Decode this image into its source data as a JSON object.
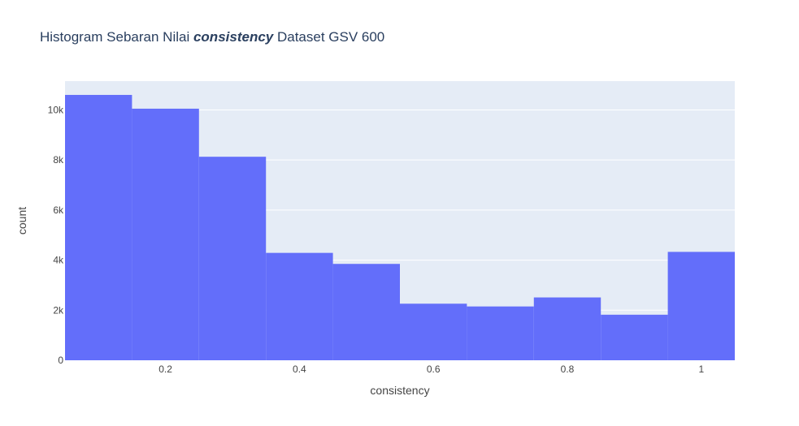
{
  "chart_data": {
    "type": "bar",
    "title_prefix": "Histogram Sebaran Nilai ",
    "title_emphasis": "consistency",
    "title_suffix": " Dataset GSV 600",
    "xlabel": "consistency",
    "ylabel": "count",
    "xlim": [
      0.05,
      1.05
    ],
    "ylim": [
      0,
      11150
    ],
    "bin_edges": [
      0.05,
      0.15,
      0.25,
      0.35,
      0.45,
      0.55,
      0.65,
      0.75,
      0.85,
      0.95,
      1.05
    ],
    "values": [
      10600,
      10050,
      8130,
      4290,
      3850,
      2260,
      2150,
      2510,
      1820,
      4330
    ],
    "x_ticks": [
      {
        "value": 0.2,
        "label": "0.2"
      },
      {
        "value": 0.4,
        "label": "0.4"
      },
      {
        "value": 0.6,
        "label": "0.6"
      },
      {
        "value": 0.8,
        "label": "0.8"
      },
      {
        "value": 1.0,
        "label": "1"
      }
    ],
    "y_ticks": [
      {
        "value": 0,
        "label": "0"
      },
      {
        "value": 2000,
        "label": "2k"
      },
      {
        "value": 4000,
        "label": "4k"
      },
      {
        "value": 6000,
        "label": "6k"
      },
      {
        "value": 8000,
        "label": "8k"
      },
      {
        "value": 10000,
        "label": "10k"
      }
    ],
    "grid": true,
    "colors": {
      "bar": "#636efa",
      "plot_bg": "#e5ecf6",
      "grid": "#ffffff",
      "title": "#2a3f5f",
      "text": "#444444"
    }
  }
}
